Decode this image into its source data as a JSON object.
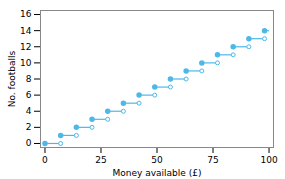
{
  "chart_data": {
    "type": "step",
    "xlabel": "Money available (£)",
    "ylabel": "No. footballs",
    "x": [
      0,
      7,
      14,
      21,
      28,
      35,
      42,
      49,
      56,
      63,
      70,
      77,
      84,
      91,
      98
    ],
    "x_end": [
      7,
      14,
      21,
      28,
      35,
      42,
      49,
      56,
      63,
      70,
      77,
      84,
      91,
      98,
      100
    ],
    "values": [
      0,
      1,
      2,
      3,
      4,
      5,
      6,
      7,
      8,
      9,
      10,
      11,
      12,
      13,
      14
    ],
    "open_end": [
      true,
      true,
      true,
      true,
      true,
      true,
      true,
      true,
      true,
      true,
      true,
      true,
      true,
      true,
      false
    ],
    "color": "#4db8e8",
    "xlim": [
      -2,
      102
    ],
    "ylim": [
      -0.5,
      16.5
    ],
    "xticks": [
      0,
      25,
      50,
      75,
      100
    ],
    "yticks": [
      0,
      2,
      4,
      6,
      8,
      10,
      12,
      14,
      16
    ]
  }
}
